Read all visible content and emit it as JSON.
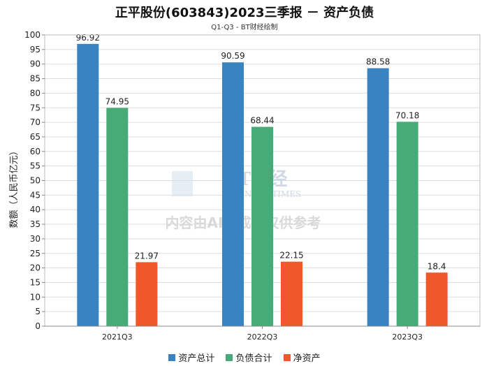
{
  "header": {
    "title": "正平股份(603843)2023三季报 － 资产负债",
    "subtitle": "Q1-Q3 - BT财经绘制"
  },
  "watermark": {
    "brand": "BT财经",
    "brand_en": "BUSINESS TIMES",
    "notice": "内容由AI生成，仅供参考"
  },
  "chart_data": {
    "type": "bar",
    "title": "正平股份(603843)2023三季报 － 资产负债",
    "subtitle": "Q1-Q3 - BT财经绘制",
    "xlabel": "",
    "ylabel": "数额（人民币亿元）",
    "ylim": [
      0,
      100
    ],
    "yticks": [
      0,
      5,
      10,
      15,
      20,
      25,
      30,
      35,
      40,
      45,
      50,
      55,
      60,
      65,
      70,
      75,
      80,
      85,
      90,
      95,
      100
    ],
    "grid": true,
    "legend": "bottom",
    "categories": [
      "2021Q3",
      "2022Q3",
      "2023Q3"
    ],
    "series": [
      {
        "name": "资产总计",
        "color": "#3a83c1",
        "values": [
          96.92,
          90.59,
          88.58
        ]
      },
      {
        "name": "负债合计",
        "color": "#47ab77",
        "values": [
          74.95,
          68.44,
          70.18
        ]
      },
      {
        "name": "净资产",
        "color": "#f0582b",
        "values": [
          21.97,
          22.15,
          18.4
        ]
      }
    ]
  }
}
